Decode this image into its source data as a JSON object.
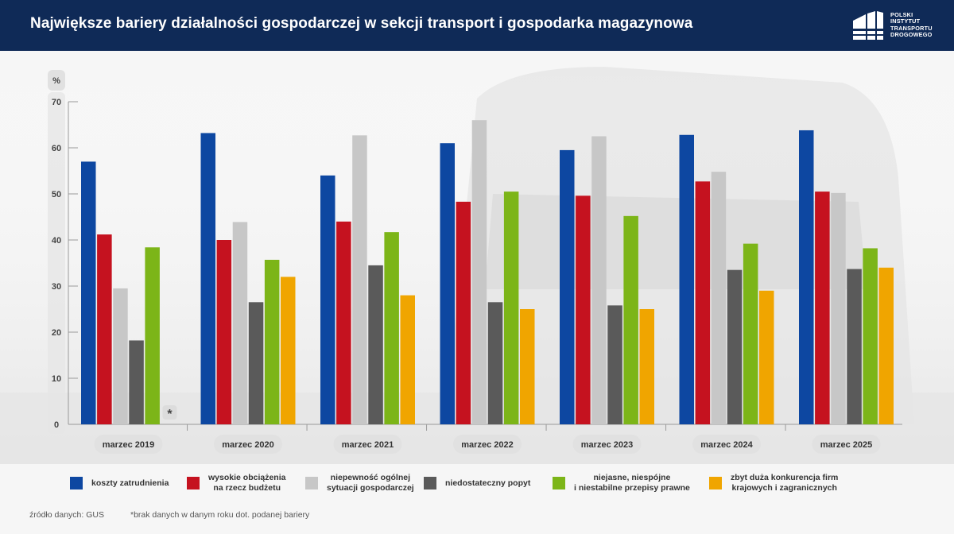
{
  "header": {
    "title": "Największe bariery działalności gospodarczej w sekcji transport i gospodarka magazynowa",
    "logo_lines": [
      "POLSKI",
      "INSTYTUT",
      "TRANSPORTU",
      "DROGOWEGO"
    ]
  },
  "chart_data": {
    "type": "bar",
    "ylabel": "%",
    "ylim": [
      0,
      70
    ],
    "yticks": [
      0,
      10,
      20,
      30,
      40,
      50,
      60,
      70
    ],
    "categories": [
      "marzec 2019",
      "marzec 2020",
      "marzec 2021",
      "marzec 2022",
      "marzec 2023",
      "marzec 2024",
      "marzec 2025"
    ],
    "series": [
      {
        "name": "koszty zatrudnienia",
        "color": "#0d47a1",
        "values": [
          57.0,
          63.2,
          54.0,
          61.0,
          59.5,
          62.8,
          63.8
        ]
      },
      {
        "name": "wysokie obciążenia na rzecz budżetu",
        "color": "#c5121f",
        "values": [
          41.2,
          40.0,
          44.0,
          48.3,
          49.6,
          52.7,
          50.5
        ]
      },
      {
        "name": "niepewność ogólnej sytuacji gospodarczej",
        "color": "#c7c7c7",
        "values": [
          29.5,
          43.9,
          62.7,
          66.0,
          62.5,
          54.8,
          50.2
        ]
      },
      {
        "name": "niedostateczny popyt",
        "color": "#5a5a5a",
        "values": [
          18.2,
          26.5,
          34.5,
          26.5,
          25.8,
          33.5,
          33.7
        ]
      },
      {
        "name": "niejasne, niespójne i niestabilne przepisy prawne",
        "color": "#7cb518",
        "values": [
          38.4,
          35.7,
          41.7,
          50.5,
          45.2,
          39.2,
          38.2
        ]
      },
      {
        "name": "zbyt duża konkurencja firm krajowych i zagranicznych",
        "color": "#f0a500",
        "values": [
          null,
          32.0,
          28.0,
          25.0,
          25.0,
          29.0,
          34.0
        ]
      }
    ],
    "missing_marker": "*",
    "grid": false,
    "legend_position": "bottom"
  },
  "legend": [
    {
      "lines": [
        "koszty zatrudnienia"
      ],
      "color": "#0d47a1"
    },
    {
      "lines": [
        "wysokie obciążenia",
        "na rzecz budżetu"
      ],
      "color": "#c5121f"
    },
    {
      "lines": [
        "niepewność ogólnej",
        "sytuacji gospodarczej"
      ],
      "color": "#c7c7c7"
    },
    {
      "lines": [
        "niedostateczny popyt"
      ],
      "color": "#5a5a5a"
    },
    {
      "lines": [
        "niejasne, niespójne",
        "i niestabilne przepisy prawne"
      ],
      "color": "#7cb518"
    },
    {
      "lines": [
        "zbyt duża konkurencja firm",
        "krajowych i zagranicznych"
      ],
      "color": "#f0a500"
    }
  ],
  "footer": {
    "source": "źródło danych: GUS",
    "note": "*brak danych w danym roku dot. podanej bariery"
  }
}
